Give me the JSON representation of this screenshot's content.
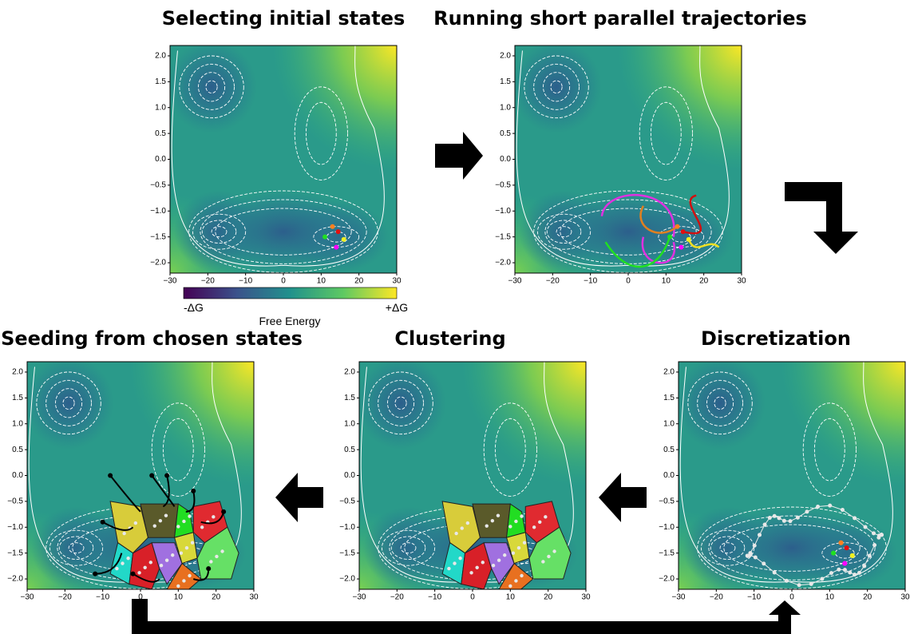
{
  "panels": [
    {
      "title": "Selecting initial states"
    },
    {
      "title": "Running short parallel trajectories"
    },
    {
      "title": "Seeding from chosen states"
    },
    {
      "title": "Clustering"
    },
    {
      "title": "Discretization"
    }
  ],
  "axes": {
    "xticks": [
      "−30",
      "−20",
      "−10",
      "0",
      "10",
      "20",
      "30"
    ],
    "yticks": [
      "2.0",
      "1.5",
      "1.0",
      "0.5",
      "0.0",
      "−0.5",
      "−1.0",
      "−1.5",
      "−2.0"
    ]
  },
  "colorbar": {
    "min_label": "-ΔG",
    "max_label": "+ΔG",
    "label": "Free Energy"
  }
}
